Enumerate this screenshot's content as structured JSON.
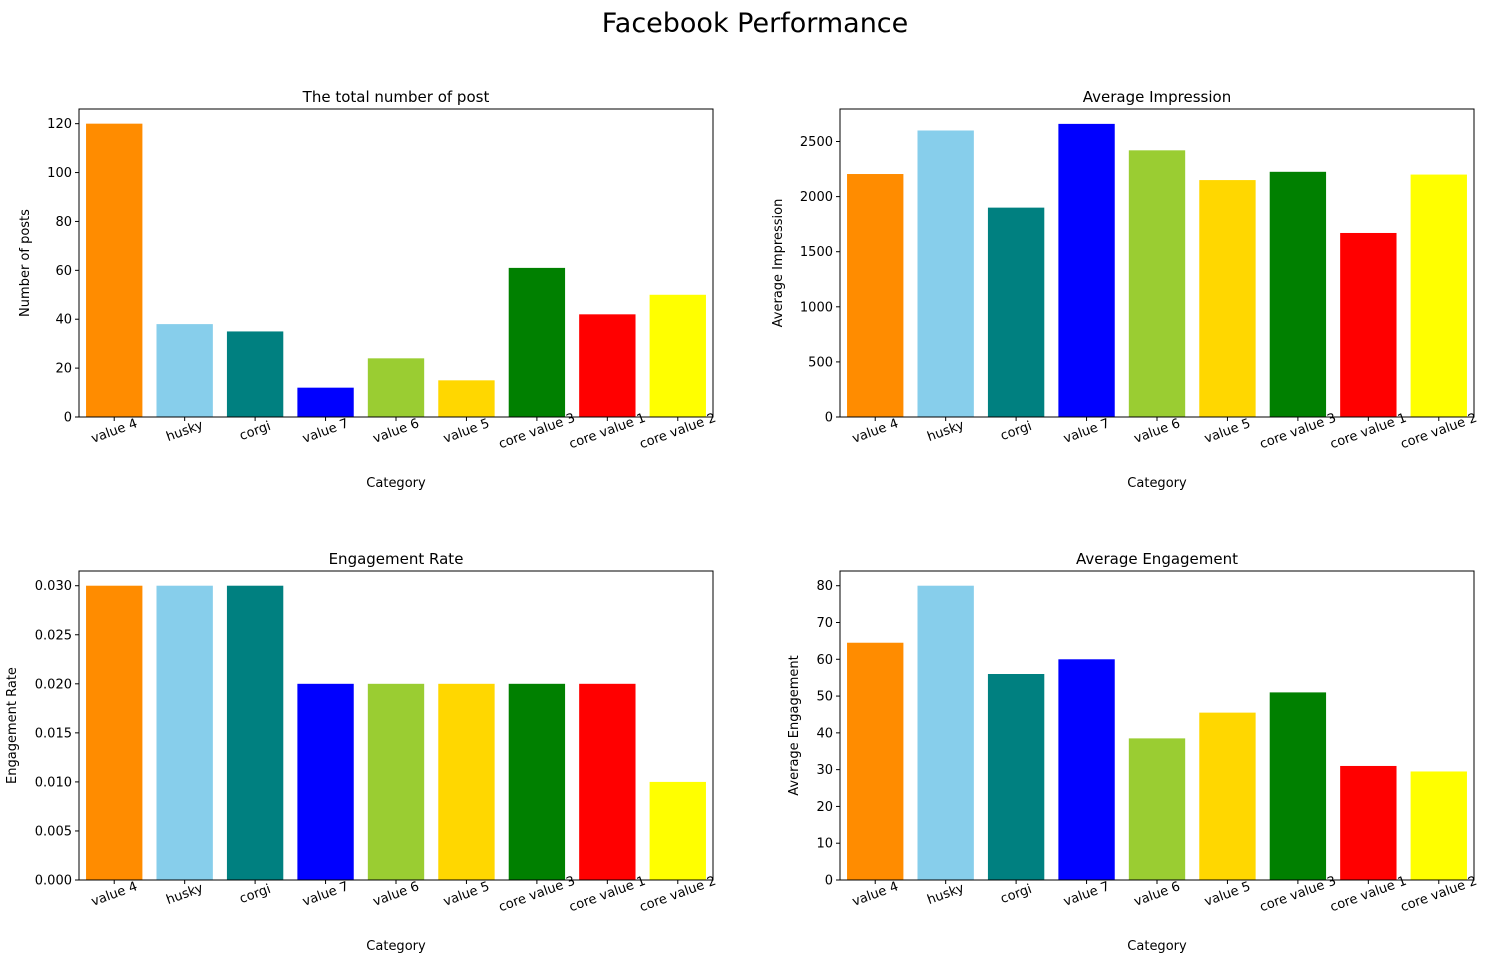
{
  "suptitle": "Facebook Performance",
  "colors": [
    "#ff8c00",
    "#87ceeb",
    "#008080",
    "#0000ff",
    "#9acd32",
    "#ffd700",
    "#008000",
    "#ff0000",
    "#ffff00"
  ],
  "chart_data": [
    {
      "type": "bar",
      "title": "The total number of post",
      "xlabel": "Category",
      "ylabel": "Number of posts",
      "categories": [
        "value 4",
        "husky",
        "corgi",
        "value 7",
        "value 6",
        "value 5",
        "core value 3",
        "core value 1",
        "core value 2"
      ],
      "values": [
        120,
        38,
        35,
        12,
        24,
        15,
        61,
        42,
        50
      ],
      "ylim": [
        0,
        126
      ],
      "yticks": [
        0,
        20,
        40,
        60,
        80,
        100,
        120
      ],
      "ytick_labels": [
        "0",
        "20",
        "40",
        "60",
        "80",
        "100",
        "120"
      ],
      "grid": false
    },
    {
      "type": "bar",
      "title": "Average Impression",
      "xlabel": "Category",
      "ylabel": "Average Impression",
      "categories": [
        "value 4",
        "husky",
        "corgi",
        "value 7",
        "value 6",
        "value 5",
        "core value 3",
        "core value 1",
        "core value 2"
      ],
      "values": [
        2205,
        2600,
        1900,
        2660,
        2420,
        2150,
        2225,
        1670,
        2200
      ],
      "ylim": [
        0,
        2795
      ],
      "yticks": [
        0,
        500,
        1000,
        1500,
        2000,
        2500
      ],
      "ytick_labels": [
        "0",
        "500",
        "1000",
        "1500",
        "2000",
        "2500"
      ],
      "grid": false
    },
    {
      "type": "bar",
      "title": "Engagement Rate",
      "xlabel": "Category",
      "ylabel": "Engagement Rate",
      "categories": [
        "value 4",
        "husky",
        "corgi",
        "value 7",
        "value 6",
        "value 5",
        "core value 3",
        "core value 1",
        "core value 2"
      ],
      "values": [
        0.03,
        0.03,
        0.03,
        0.02,
        0.02,
        0.02,
        0.02,
        0.02,
        0.01
      ],
      "ylim": [
        0,
        0.0315
      ],
      "yticks": [
        0,
        0.005,
        0.01,
        0.015,
        0.02,
        0.025,
        0.03
      ],
      "ytick_labels": [
        "0.000",
        "0.005",
        "0.010",
        "0.015",
        "0.020",
        "0.025",
        "0.030"
      ],
      "grid": false
    },
    {
      "type": "bar",
      "title": "Average Engagement",
      "xlabel": "Category",
      "ylabel": "Average Engagement",
      "categories": [
        "value 4",
        "husky",
        "corgi",
        "value 7",
        "value 6",
        "value 5",
        "core value 3",
        "core value 1",
        "core value 2"
      ],
      "values": [
        64.5,
        80,
        56,
        60,
        38.5,
        45.5,
        51,
        31,
        29.5
      ],
      "ylim": [
        0,
        84
      ],
      "yticks": [
        0,
        10,
        20,
        30,
        40,
        50,
        60,
        70,
        80
      ],
      "ytick_labels": [
        "0",
        "10",
        "20",
        "30",
        "40",
        "50",
        "60",
        "70",
        "80"
      ],
      "grid": false
    }
  ]
}
